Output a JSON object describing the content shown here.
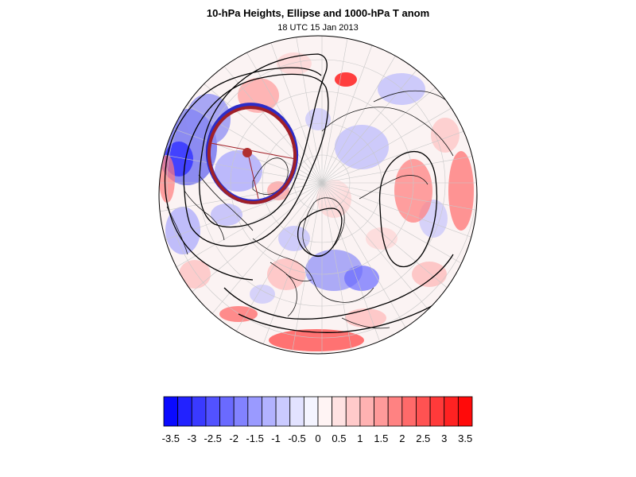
{
  "header": {
    "title": "10-hPa Heights, Ellipse and 1000-hPa T anom",
    "subtitle": "18 UTC 15 Jan 2013"
  },
  "colorbar": {
    "labels": [
      "-3.5",
      "-3",
      "-2.5",
      "-2",
      "-1.5",
      "-1",
      "-0.5",
      "0",
      "0.5",
      "1",
      "1.5",
      "2",
      "2.5",
      "3",
      "3.5"
    ],
    "colors": [
      "#0a0aff",
      "#2222ff",
      "#3a3aff",
      "#5252ff",
      "#6a6aff",
      "#8282ff",
      "#9a9aff",
      "#b2b2ff",
      "#cacaff",
      "#e2e2ff",
      "#f4f4ff",
      "#fff4f4",
      "#ffe2e2",
      "#ffcaca",
      "#ffb2b2",
      "#ff9a9a",
      "#ff8282",
      "#ff6a6a",
      "#ff5252",
      "#ff3a3a",
      "#ff2222",
      "#ff0a0a"
    ]
  },
  "map": {
    "projection": "north polar stereographic",
    "ellipse_outer_color": "#2c2cc8",
    "ellipse_inner_color": "#a02028",
    "center_dot_color": "#b03030"
  }
}
